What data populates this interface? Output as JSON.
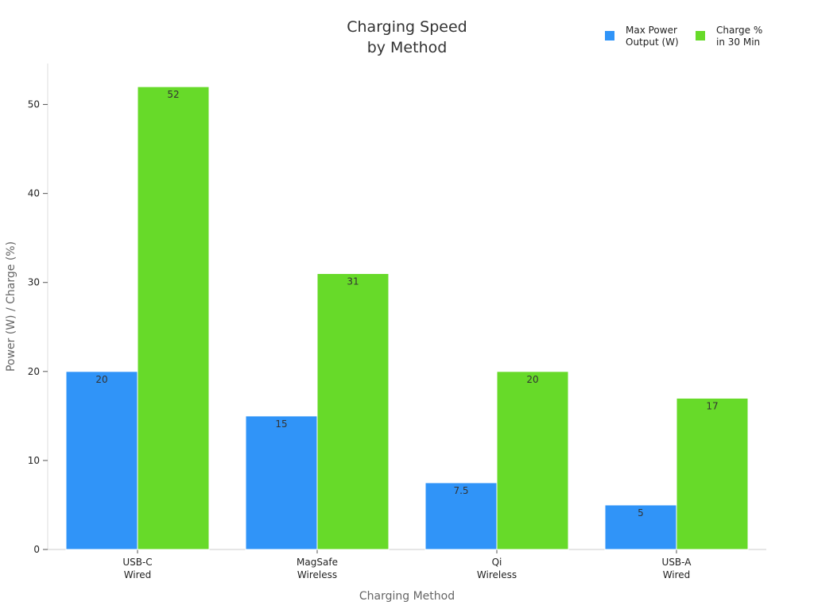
{
  "chart_data": {
    "type": "bar",
    "title": [
      "Charging Speed",
      "by Method"
    ],
    "xlabel": "Charging Method",
    "ylabel": "Power (W) / Charge (%)",
    "categories": [
      [
        "USB-C",
        "Wired"
      ],
      [
        "MagSafe",
        "Wireless"
      ],
      [
        "Qi",
        "Wireless"
      ],
      [
        "USB-A",
        "Wired"
      ]
    ],
    "series": [
      {
        "name": [
          "Max Power",
          "Output (W)"
        ],
        "values": [
          20,
          15,
          7.5,
          5
        ],
        "value_labels": [
          "20",
          "15",
          "7.5",
          "5"
        ],
        "color": "#3094f8"
      },
      {
        "name": [
          "Charge %",
          "in 30 Min"
        ],
        "values": [
          52,
          31,
          20,
          17
        ],
        "value_labels": [
          "52",
          "31",
          "20",
          "17"
        ],
        "color": "#67da29"
      }
    ],
    "ylim": [
      0,
      54.6
    ],
    "yticks": [
      0,
      10,
      20,
      30,
      40,
      50
    ],
    "ytick_labels": [
      "0",
      "10",
      "20",
      "30",
      "40",
      "50"
    ],
    "legend_position": "top-right",
    "grid": false
  }
}
